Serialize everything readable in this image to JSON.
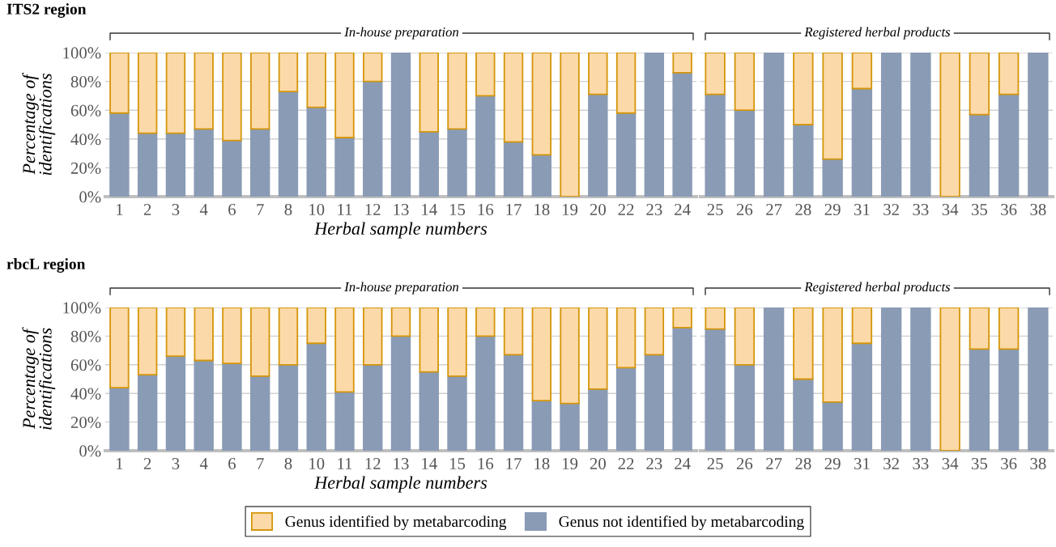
{
  "chart_data": [
    {
      "type": "bar",
      "title": "ITS2 region",
      "subtitle": "In-house preparation",
      "xlabel": "Herbal sample numbers",
      "ylabel": "Percentage of identifications",
      "stacked": true,
      "grid": "y",
      "categories": [
        "1",
        "2",
        "3",
        "4",
        "6",
        "7",
        "8",
        "10",
        "11",
        "12",
        "13",
        "14",
        "15",
        "16",
        "17",
        "18",
        "19",
        "20",
        "22",
        "23",
        "24"
      ],
      "series": [
        {
          "color": "#8a9bb5",
          "values": [
            58,
            44,
            44,
            47,
            39,
            47,
            73,
            62,
            41,
            80,
            100,
            45,
            47,
            70,
            38,
            29,
            0,
            71,
            58,
            100,
            86
          ]
        },
        {
          "color": "#fcd9a8",
          "values": [
            42,
            56,
            56,
            53,
            61,
            53,
            27,
            38,
            59,
            20,
            0,
            55,
            53,
            30,
            62,
            71,
            100,
            29,
            42,
            0,
            14
          ]
        }
      ],
      "ylim": [
        0,
        100
      ],
      "yticks": [
        {
          "value": 0,
          "label": "0%"
        },
        {
          "value": 20,
          "label": "20%"
        },
        {
          "value": 40,
          "label": "40%"
        },
        {
          "value": 60,
          "label": "60%"
        },
        {
          "value": 80,
          "label": "80%"
        },
        {
          "value": 100,
          "label": "100%"
        }
      ]
    },
    {
      "type": "bar",
      "subtitle": "Registered herbal products",
      "stacked": true,
      "grid": "y",
      "tick_labels": "x",
      "categories": [
        "25",
        "26",
        "27",
        "28",
        "29",
        "31",
        "32",
        "33",
        "34",
        "35",
        "36",
        "38"
      ],
      "series": [
        {
          "color": "#8a9bb5",
          "values": [
            71,
            60,
            100,
            50,
            26,
            75,
            100,
            100,
            0,
            57,
            71,
            100
          ]
        },
        {
          "color": "#fcd9a8",
          "values": [
            29,
            40,
            0,
            50,
            74,
            25,
            0,
            0,
            100,
            43,
            29,
            0
          ]
        }
      ],
      "ylim": [
        0,
        100
      ],
      "yticks": [
        0,
        20,
        40,
        60,
        80,
        100
      ]
    },
    {
      "type": "bar",
      "title": "rbcL region",
      "subtitle": "In-house preparation",
      "xlabel": "Herbal sample numbers",
      "ylabel": "Percentage of identifications",
      "stacked": true,
      "grid": "y",
      "categories": [
        "1",
        "2",
        "3",
        "4",
        "6",
        "7",
        "8",
        "10",
        "11",
        "12",
        "13",
        "14",
        "15",
        "16",
        "17",
        "18",
        "19",
        "20",
        "22",
        "23",
        "24"
      ],
      "series": [
        {
          "color": "#8a9bb5",
          "values": [
            44,
            53,
            66,
            63,
            61,
            52,
            60,
            75,
            41,
            60,
            80,
            55,
            52,
            80,
            67,
            35,
            33,
            43,
            58,
            67,
            86
          ]
        },
        {
          "color": "#fcd9a8",
          "values": [
            56,
            47,
            34,
            37,
            39,
            48,
            40,
            25,
            59,
            40,
            20,
            45,
            48,
            20,
            33,
            65,
            67,
            57,
            42,
            33,
            14
          ]
        }
      ],
      "ylim": [
        0,
        100
      ],
      "yticks": [
        {
          "value": 0,
          "label": "0%"
        },
        {
          "value": 20,
          "label": "20%"
        },
        {
          "value": 40,
          "label": "40%"
        },
        {
          "value": 60,
          "label": "60%"
        },
        {
          "value": 80,
          "label": "80%"
        },
        {
          "value": 100,
          "label": "100%"
        }
      ]
    },
    {
      "type": "bar",
      "subtitle": "Registered herbal products",
      "stacked": true,
      "grid": "y",
      "tick_labels": "x",
      "legend": "bottom",
      "categories": [
        "25",
        "26",
        "27",
        "28",
        "29",
        "31",
        "32",
        "33",
        "34",
        "35",
        "36",
        "38"
      ],
      "series": [
        {
          "name": "Genus not identified by metabarcoding",
          "color": "#8a9bb5",
          "values": [
            85,
            60,
            100,
            50,
            34,
            75,
            100,
            100,
            0,
            71,
            71,
            100
          ]
        },
        {
          "name": "Genus identified by metabarcoding",
          "color": "#fcd9a8",
          "values": [
            15,
            40,
            0,
            50,
            66,
            25,
            0,
            0,
            100,
            29,
            29,
            0
          ]
        }
      ],
      "ylim": [
        0,
        100
      ],
      "yticks": [
        0,
        20,
        40,
        60,
        80,
        100
      ]
    }
  ]
}
